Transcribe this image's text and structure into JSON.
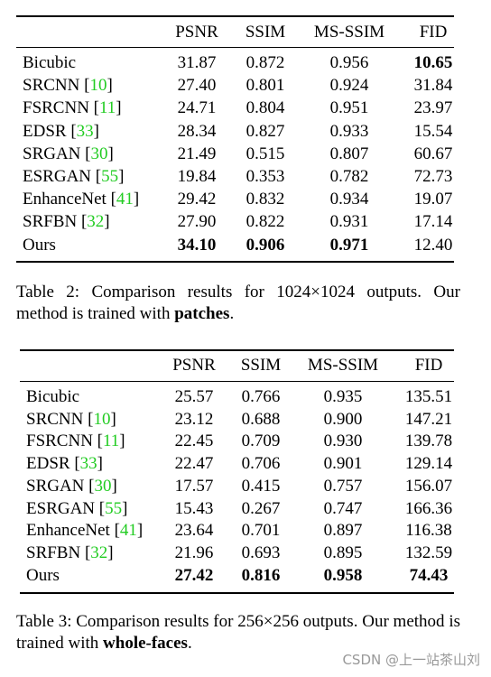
{
  "tables": [
    {
      "header": [
        "",
        "PSNR",
        "SSIM",
        "MS-SSIM",
        "FID"
      ],
      "rows": [
        {
          "method": "Bicubic",
          "cite": null,
          "values": [
            "31.87",
            "0.872",
            "0.956",
            "10.65"
          ]
        },
        {
          "method": "SRCNN",
          "cite": "[10]",
          "values": [
            "27.40",
            "0.801",
            "0.924",
            "31.84"
          ]
        },
        {
          "method": "FSRCNN",
          "cite": "[11]",
          "values": [
            "24.71",
            "0.804",
            "0.951",
            "23.97"
          ]
        },
        {
          "method": "EDSR",
          "cite": "[33]",
          "values": [
            "28.34",
            "0.827",
            "0.933",
            "15.54"
          ]
        },
        {
          "method": "SRGAN",
          "cite": "[30]",
          "values": [
            "21.49",
            "0.515",
            "0.807",
            "60.67"
          ]
        },
        {
          "method": "ESRGAN",
          "cite": "[55]",
          "values": [
            "19.84",
            "0.353",
            "0.782",
            "72.73"
          ]
        },
        {
          "method": "EnhanceNet",
          "cite": "[41]",
          "values": [
            "29.42",
            "0.832",
            "0.934",
            "19.07"
          ]
        },
        {
          "method": "SRFBN",
          "cite": "[32]",
          "values": [
            "27.90",
            "0.822",
            "0.931",
            "17.14"
          ]
        },
        {
          "method": "Ours",
          "cite": null,
          "values": [
            "34.10",
            "0.906",
            "0.971",
            "12.40"
          ]
        }
      ],
      "bold_cells": [
        [
          0,
          3
        ],
        [
          8,
          0
        ],
        [
          8,
          1
        ],
        [
          8,
          2
        ]
      ],
      "caption": {
        "text": "Table 2:  Comparison results for 1024×1024 outputs.  Our method is trained with ",
        "bold": "patches",
        "end": "."
      }
    },
    {
      "header": [
        "",
        "PSNR",
        "SSIM",
        "MS-SSIM",
        "FID"
      ],
      "rows": [
        {
          "method": "Bicubic",
          "cite": null,
          "values": [
            "25.57",
            "0.766",
            "0.935",
            "135.51"
          ]
        },
        {
          "method": "SRCNN",
          "cite": "[10]",
          "values": [
            "23.12",
            "0.688",
            "0.900",
            "147.21"
          ]
        },
        {
          "method": "FSRCNN",
          "cite": "[11]",
          "values": [
            "22.45",
            "0.709",
            "0.930",
            "139.78"
          ]
        },
        {
          "method": "EDSR",
          "cite": "[33]",
          "values": [
            "22.47",
            "0.706",
            "0.901",
            "129.14"
          ]
        },
        {
          "method": "SRGAN",
          "cite": "[30]",
          "values": [
            "17.57",
            "0.415",
            "0.757",
            "156.07"
          ]
        },
        {
          "method": "ESRGAN",
          "cite": "[55]",
          "values": [
            "15.43",
            "0.267",
            "0.747",
            "166.36"
          ]
        },
        {
          "method": "EnhanceNet",
          "cite": "[41]",
          "values": [
            "23.64",
            "0.701",
            "0.897",
            "116.38"
          ]
        },
        {
          "method": "SRFBN",
          "cite": "[32]",
          "values": [
            "21.96",
            "0.693",
            "0.895",
            "132.59"
          ]
        },
        {
          "method": "Ours",
          "cite": null,
          "values": [
            "27.42",
            "0.816",
            "0.958",
            "74.43"
          ]
        }
      ],
      "bold_cells": [
        [
          8,
          0
        ],
        [
          8,
          1
        ],
        [
          8,
          2
        ],
        [
          8,
          3
        ]
      ],
      "caption": {
        "text": "Table 3:  Comparison results for 256×256 outputs.  Our method is trained with ",
        "bold": "whole-faces",
        "end": "."
      }
    }
  ],
  "watermark": "CSDN @上一站茶山刘"
}
